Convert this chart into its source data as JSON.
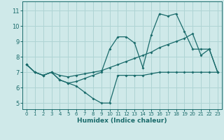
{
  "xlabel": "Humidex (Indice chaleur)",
  "ylabel": "",
  "bg_color": "#cfe9e9",
  "grid_color": "#afd4d4",
  "line_color": "#1a6b6b",
  "xlim": [
    -0.5,
    23.5
  ],
  "ylim": [
    4.6,
    11.6
  ],
  "xticks": [
    0,
    1,
    2,
    3,
    4,
    5,
    6,
    7,
    8,
    9,
    10,
    11,
    12,
    13,
    14,
    15,
    16,
    17,
    18,
    19,
    20,
    21,
    22,
    23
  ],
  "yticks": [
    5,
    6,
    7,
    8,
    9,
    10,
    11
  ],
  "series": [
    {
      "x": [
        0,
        1,
        2,
        3,
        4,
        5,
        6,
        7,
        8,
        9,
        10,
        11,
        12,
        13,
        14,
        15,
        16,
        17,
        18,
        19,
        20,
        21,
        22,
        23
      ],
      "y": [
        7.5,
        7.0,
        6.8,
        7.0,
        6.5,
        6.3,
        6.1,
        5.7,
        5.3,
        5.0,
        5.0,
        6.8,
        6.8,
        6.8,
        6.8,
        6.9,
        7.0,
        7.0,
        7.0,
        7.0,
        7.0,
        7.0,
        7.0,
        7.0
      ]
    },
    {
      "x": [
        0,
        1,
        2,
        3,
        4,
        5,
        6,
        7,
        8,
        9,
        10,
        11,
        12,
        13,
        14,
        15,
        16,
        17,
        18,
        19,
        20,
        21,
        22,
        23
      ],
      "y": [
        7.5,
        7.0,
        6.8,
        7.0,
        6.5,
        6.3,
        6.4,
        6.6,
        6.8,
        7.0,
        8.5,
        9.3,
        9.3,
        8.9,
        7.3,
        9.4,
        10.8,
        10.65,
        10.8,
        9.65,
        8.5,
        8.5,
        8.5,
        7.0
      ]
    },
    {
      "x": [
        0,
        1,
        2,
        3,
        4,
        5,
        6,
        7,
        8,
        9,
        10,
        11,
        12,
        13,
        14,
        15,
        16,
        17,
        18,
        19,
        20,
        21,
        22,
        23
      ],
      "y": [
        7.5,
        7.0,
        6.8,
        7.0,
        6.8,
        6.7,
        6.8,
        6.9,
        7.0,
        7.1,
        7.3,
        7.5,
        7.7,
        7.9,
        8.1,
        8.3,
        8.6,
        8.8,
        9.0,
        9.2,
        9.5,
        8.1,
        8.5,
        7.0
      ]
    }
  ]
}
